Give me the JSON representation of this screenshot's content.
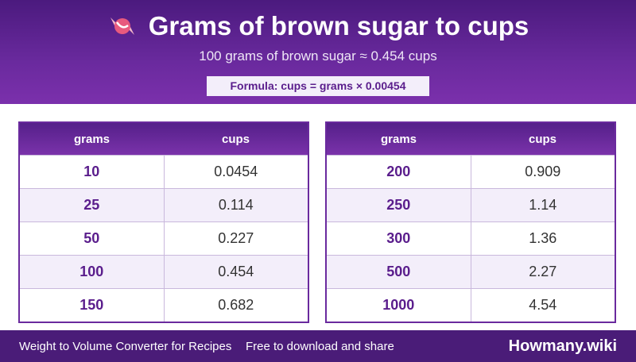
{
  "header": {
    "title": "Grams of brown sugar to cups",
    "subtitle": "100 grams of brown sugar ≈ 0.454 cups",
    "formula": "Formula: cups = grams × 0.00454"
  },
  "tables": [
    {
      "columns": [
        "grams",
        "cups"
      ],
      "rows": [
        [
          "10",
          "0.0454"
        ],
        [
          "25",
          "0.114"
        ],
        [
          "50",
          "0.227"
        ],
        [
          "100",
          "0.454"
        ],
        [
          "150",
          "0.682"
        ]
      ]
    },
    {
      "columns": [
        "grams",
        "cups"
      ],
      "rows": [
        [
          "200",
          "0.909"
        ],
        [
          "250",
          "1.14"
        ],
        [
          "300",
          "1.36"
        ],
        [
          "500",
          "2.27"
        ],
        [
          "1000",
          "4.54"
        ]
      ]
    }
  ],
  "footer": {
    "left": "Weight to Volume Converter for Recipes",
    "middle": "Free to download and share",
    "brand": "Howmany.wiki"
  }
}
